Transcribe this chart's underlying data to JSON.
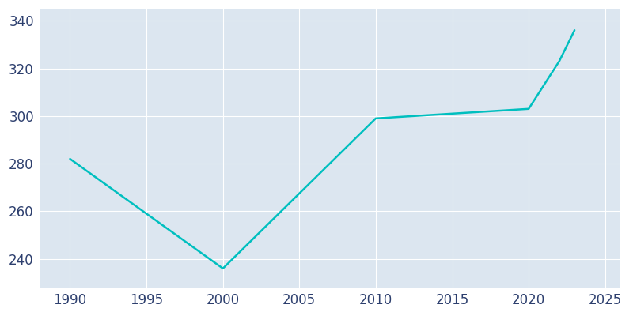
{
  "years": [
    1990,
    2000,
    2010,
    2015,
    2020,
    2022,
    2023
  ],
  "population": [
    282,
    236,
    299,
    301,
    303,
    323,
    336
  ],
  "line_color": "#00BFBF",
  "background_color": "#ffffff",
  "plot_background_color": "#dce6f0",
  "grid_color": "#ffffff",
  "xlim": [
    1988,
    2026
  ],
  "ylim": [
    228,
    345
  ],
  "xticks": [
    1990,
    1995,
    2000,
    2005,
    2010,
    2015,
    2020,
    2025
  ],
  "yticks": [
    240,
    260,
    280,
    300,
    320,
    340
  ],
  "tick_color": "#2d3f6e",
  "tick_fontsize": 12,
  "linewidth": 1.8
}
